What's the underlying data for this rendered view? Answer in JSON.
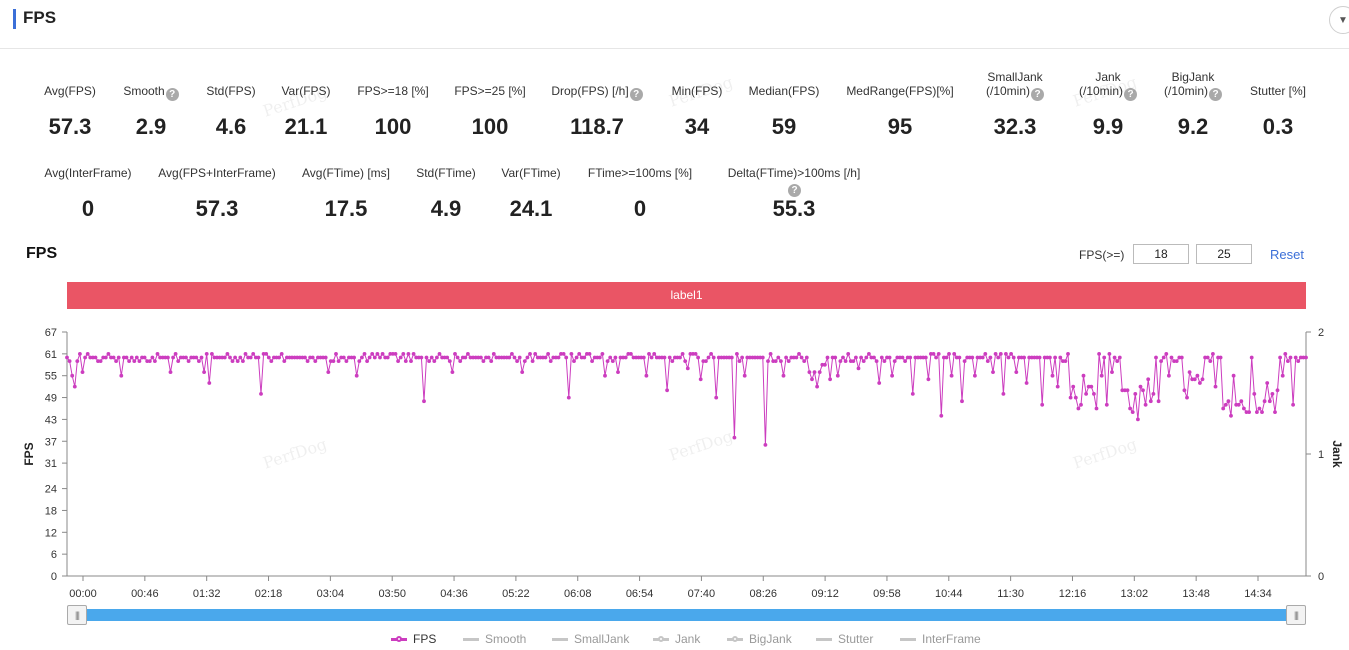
{
  "header": {
    "title": "FPS",
    "collapse_icon": "chevron-down-icon"
  },
  "metrics_row1": [
    {
      "label": "Avg(FPS)",
      "value": "57.3",
      "help": false
    },
    {
      "label": "Smooth",
      "value": "2.9",
      "help": true
    },
    {
      "label": "Std(FPS)",
      "value": "4.6",
      "help": false
    },
    {
      "label": "Var(FPS)",
      "value": "21.1",
      "help": false
    },
    {
      "label": "FPS>=18 [%]",
      "value": "100",
      "help": false
    },
    {
      "label": "FPS>=25 [%]",
      "value": "100",
      "help": false
    },
    {
      "label": "Drop(FPS) [/h]",
      "value": "118.7",
      "help": true
    },
    {
      "label": "Min(FPS)",
      "value": "34",
      "help": false
    },
    {
      "label": "Median(FPS)",
      "value": "59",
      "help": false
    },
    {
      "label": "MedRange(FPS)[%]",
      "value": "95",
      "help": false
    },
    {
      "label": "SmallJank",
      "label2": "(/10min)",
      "value": "32.3",
      "help": true
    },
    {
      "label": "Jank",
      "label2": "(/10min)",
      "value": "9.9",
      "help": true
    },
    {
      "label": "BigJank",
      "label2": "(/10min)",
      "value": "9.2",
      "help": true
    },
    {
      "label": "Stutter [%]",
      "value": "0.3",
      "help": false
    }
  ],
  "metrics_row2": [
    {
      "label": "Avg(InterFrame)",
      "value": "0",
      "help": false
    },
    {
      "label": "Avg(FPS+InterFrame)",
      "value": "57.3",
      "help": false
    },
    {
      "label": "Avg(FTime) [ms]",
      "value": "17.5",
      "help": false
    },
    {
      "label": "Std(FTime)",
      "value": "4.9",
      "help": false
    },
    {
      "label": "Var(FTime)",
      "value": "24.1",
      "help": false
    },
    {
      "label": "FTime>=100ms [%]",
      "value": "0",
      "help": false
    },
    {
      "label": "Delta(FTime)>100ms [/h]",
      "value": "55.3",
      "help": true
    }
  ],
  "help_glyph": "?",
  "chart_section": {
    "title": "FPS",
    "threshold_label": "FPS(>=)",
    "threshold1": "18",
    "threshold2": "25",
    "reset_label": "Reset",
    "band_label": "label1"
  },
  "watermark": "PerfDog",
  "slider": {
    "handle_glyph": "|||",
    "start": 0.0,
    "end": 1.0
  },
  "legend": [
    {
      "name": "FPS",
      "color": "#cc3dbf",
      "active": true,
      "marker": "dot"
    },
    {
      "name": "Smooth",
      "color": "#c6c6c6",
      "active": false,
      "marker": "line"
    },
    {
      "name": "SmallJank",
      "color": "#c6c6c6",
      "active": false,
      "marker": "line"
    },
    {
      "name": "Jank",
      "color": "#c6c6c6",
      "active": false,
      "marker": "dot"
    },
    {
      "name": "BigJank",
      "color": "#c6c6c6",
      "active": false,
      "marker": "dot"
    },
    {
      "name": "Stutter",
      "color": "#c6c6c6",
      "active": false,
      "marker": "line"
    },
    {
      "name": "InterFrame",
      "color": "#c6c6c6",
      "active": false,
      "marker": "line"
    }
  ],
  "chart_data": {
    "type": "line",
    "ylabel": "FPS",
    "y2label": "Jank",
    "yticks": [
      0,
      6,
      12,
      18,
      24,
      31,
      37,
      43,
      49,
      55,
      61,
      67
    ],
    "ylim": [
      0,
      67
    ],
    "y2ticks": [
      0,
      1,
      2
    ],
    "y2lim": [
      0,
      2
    ],
    "xticks": [
      "00:00",
      "00:46",
      "01:32",
      "02:18",
      "03:04",
      "03:50",
      "04:36",
      "05:22",
      "06:08",
      "06:54",
      "07:40",
      "08:26",
      "09:12",
      "09:58",
      "10:44",
      "11:30",
      "12:16",
      "13:02",
      "13:48",
      "14:34"
    ],
    "xlim_seconds": [
      0,
      900
    ],
    "grid": false,
    "series": [
      {
        "name": "FPS",
        "color": "#cc3dbf",
        "baseline": 60,
        "dips": [
          [
            3,
            55
          ],
          [
            6,
            52
          ],
          [
            12,
            56
          ],
          [
            40,
            55
          ],
          [
            75,
            56
          ],
          [
            100,
            56
          ],
          [
            104,
            53
          ],
          [
            140,
            50
          ],
          [
            190,
            56
          ],
          [
            210,
            55
          ],
          [
            260,
            48
          ],
          [
            280,
            56
          ],
          [
            330,
            56
          ],
          [
            364,
            49
          ],
          [
            390,
            55
          ],
          [
            400,
            56
          ],
          [
            420,
            55
          ],
          [
            436,
            51
          ],
          [
            450,
            57
          ],
          [
            460,
            54
          ],
          [
            472,
            49
          ],
          [
            484,
            38
          ],
          [
            492,
            55
          ],
          [
            508,
            36
          ],
          [
            520,
            55
          ],
          [
            540,
            56
          ],
          [
            560,
            55
          ],
          [
            575,
            57
          ],
          [
            590,
            53
          ],
          [
            600,
            55
          ],
          [
            615,
            50
          ],
          [
            625,
            54
          ],
          [
            636,
            44
          ],
          [
            642,
            55
          ],
          [
            650,
            48
          ],
          [
            660,
            55
          ],
          [
            672,
            56
          ],
          [
            680,
            50
          ],
          [
            690,
            56
          ],
          [
            698,
            53
          ],
          [
            708,
            47
          ],
          [
            715,
            55
          ],
          [
            720,
            52
          ],
          [
            738,
            55
          ],
          [
            746,
            50
          ],
          [
            752,
            55
          ],
          [
            755,
            47
          ],
          [
            760,
            56
          ],
          [
            768,
            51
          ],
          [
            778,
            43
          ],
          [
            786,
            54
          ],
          [
            792,
            48
          ],
          [
            800,
            55
          ],
          [
            815,
            56
          ],
          [
            835,
            52
          ],
          [
            848,
            55
          ],
          [
            862,
            50
          ],
          [
            870,
            48
          ],
          [
            878,
            45
          ],
          [
            883,
            55
          ],
          [
            890,
            47
          ]
        ],
        "lowzones": [
          [
            540,
            556,
            56
          ],
          [
            728,
            748,
            49
          ],
          [
            766,
            790,
            49
          ],
          [
            810,
            826,
            52
          ],
          [
            838,
            860,
            45
          ],
          [
            862,
            880,
            49
          ]
        ]
      }
    ]
  }
}
